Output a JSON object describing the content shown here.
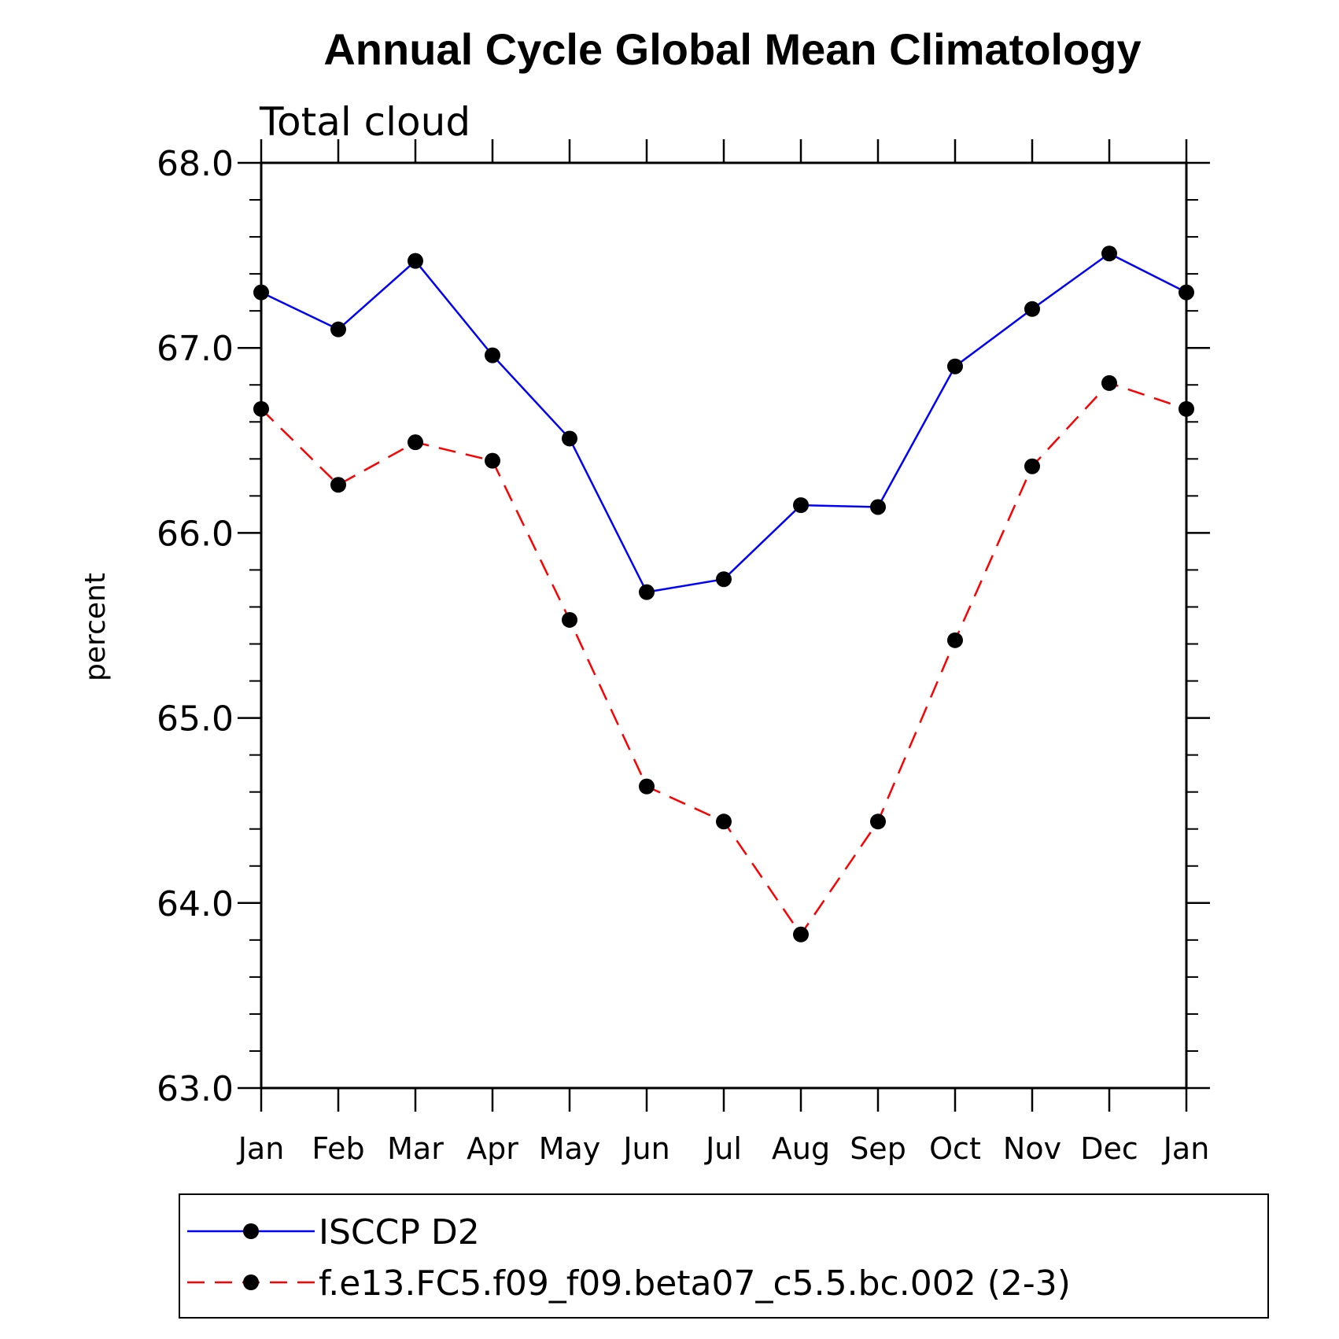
{
  "chart_data": {
    "type": "line",
    "title": "Annual Cycle Global Mean Climatology",
    "subtitle": "Total cloud",
    "xlabel": "",
    "ylabel": "percent",
    "categories": [
      "Jan",
      "Feb",
      "Mar",
      "Apr",
      "May",
      "Jun",
      "Jul",
      "Aug",
      "Sep",
      "Oct",
      "Nov",
      "Dec",
      "Jan"
    ],
    "ylim": [
      63.0,
      68.0
    ],
    "yticks": [
      "63.0",
      "64.0",
      "65.0",
      "66.0",
      "67.0",
      "68.0"
    ],
    "y_minor_step": 0.2,
    "grid": false,
    "legend": {
      "placement": "bottom",
      "boxed": true
    },
    "series": [
      {
        "name": "ISCCP D2",
        "color": "#0000ff",
        "dash": "solid",
        "marker": "filled-circle",
        "marker_color": "#000000",
        "values": [
          67.3,
          67.1,
          67.47,
          66.96,
          66.51,
          65.68,
          65.75,
          66.15,
          66.14,
          66.9,
          67.21,
          67.51,
          67.3
        ]
      },
      {
        "name": "f.e13.FC5.f09_f09.beta07_c5.5.bc.002 (2-3)",
        "color": "#ff0000",
        "dash": "dashed",
        "marker": "filled-circle",
        "marker_color": "#000000",
        "values": [
          66.67,
          66.26,
          66.49,
          66.39,
          65.53,
          64.63,
          64.44,
          63.83,
          64.44,
          65.42,
          66.36,
          66.81,
          66.67
        ]
      }
    ]
  }
}
